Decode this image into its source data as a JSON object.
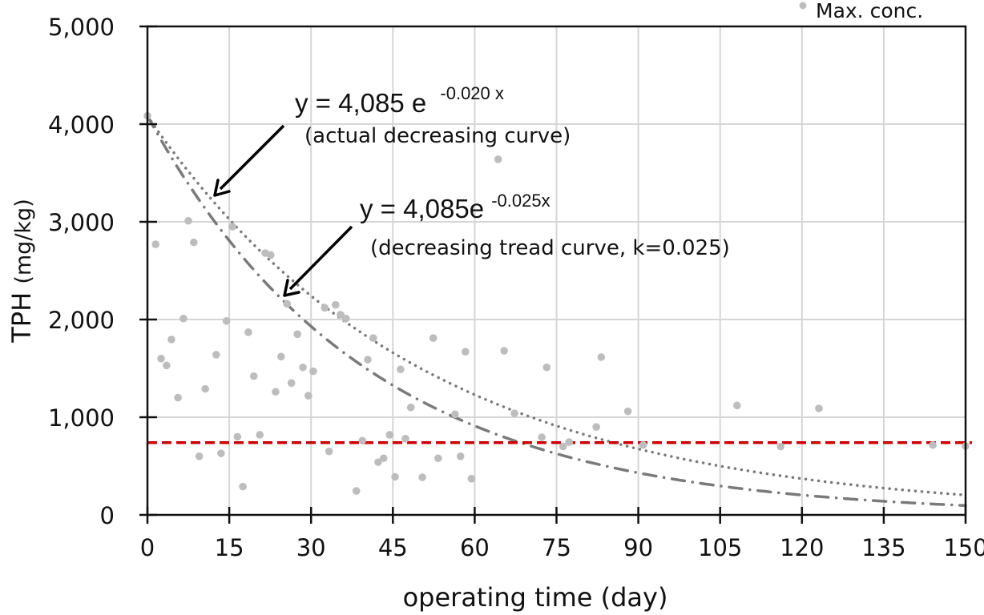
{
  "chart_data": {
    "type": "scatter",
    "title": "",
    "xlabel": "operating time (day)",
    "ylabel_main": "TPH",
    "ylabel_unit": "(mg/kg)",
    "xlim": [
      0,
      150
    ],
    "ylim": [
      0,
      5000
    ],
    "xticks": [
      0,
      15,
      30,
      45,
      60,
      75,
      90,
      105,
      120,
      135,
      150
    ],
    "yticks": [
      0,
      1000,
      2000,
      3000,
      4000,
      5000
    ],
    "xtick_labels": [
      "0",
      "15",
      "30",
      "45",
      "60",
      "75",
      "90",
      "105",
      "120",
      "135",
      "150"
    ],
    "ytick_labels": [
      "0",
      "1,000",
      "2,000",
      "3,000",
      "4,000",
      "5,000"
    ],
    "grid": true,
    "legend": {
      "position": "top-right",
      "entries": [
        {
          "label": "Max. conc.",
          "color": "#bdbdbd",
          "marker": "circle"
        }
      ]
    },
    "series": [
      {
        "name": "Max. conc.",
        "kind": "scatter",
        "color": "#bdbdbd",
        "points": [
          [
            0,
            4085
          ],
          [
            1.5,
            2770
          ],
          [
            2.5,
            1600
          ],
          [
            3.5,
            1530
          ],
          [
            4.4,
            1795
          ],
          [
            5.6,
            1200
          ],
          [
            6.6,
            2010
          ],
          [
            7.5,
            3010
          ],
          [
            8.5,
            2790
          ],
          [
            9.5,
            600
          ],
          [
            10.6,
            1290
          ],
          [
            12.6,
            1640
          ],
          [
            13.5,
            630
          ],
          [
            14.5,
            1985
          ],
          [
            15.6,
            2950
          ],
          [
            16.5,
            800
          ],
          [
            17.5,
            290
          ],
          [
            18.5,
            1870
          ],
          [
            19.5,
            1420
          ],
          [
            20.6,
            820
          ],
          [
            21.6,
            2680
          ],
          [
            22.6,
            2660
          ],
          [
            23.5,
            1260
          ],
          [
            24.5,
            1620
          ],
          [
            25.6,
            2160
          ],
          [
            26.4,
            1350
          ],
          [
            27.5,
            1850
          ],
          [
            28.5,
            1510
          ],
          [
            29.5,
            1220
          ],
          [
            30.4,
            1470
          ],
          [
            32.5,
            2120
          ],
          [
            33.3,
            650
          ],
          [
            34.5,
            2150
          ],
          [
            35.4,
            2050
          ],
          [
            36.4,
            2010
          ],
          [
            38.3,
            245
          ],
          [
            39.4,
            760
          ],
          [
            40.4,
            1590
          ],
          [
            41.4,
            1810
          ],
          [
            42.3,
            540
          ],
          [
            43.3,
            580
          ],
          [
            44.4,
            820
          ],
          [
            45.4,
            390
          ],
          [
            46.4,
            1490
          ],
          [
            47.3,
            780
          ],
          [
            48.3,
            1100
          ],
          [
            50.4,
            385
          ],
          [
            52.4,
            1810
          ],
          [
            53.3,
            580
          ],
          [
            56.4,
            1030
          ],
          [
            57.4,
            600
          ],
          [
            58.3,
            1670
          ],
          [
            59.4,
            370
          ],
          [
            64.3,
            3640
          ],
          [
            65.4,
            1680
          ],
          [
            67.3,
            1040
          ],
          [
            72.3,
            795
          ],
          [
            73.2,
            1510
          ],
          [
            76.2,
            700
          ],
          [
            77.3,
            745
          ],
          [
            82.3,
            900
          ],
          [
            83.2,
            1615
          ],
          [
            88.1,
            1060
          ],
          [
            90.9,
            715
          ],
          [
            108.1,
            1120
          ],
          [
            116.1,
            700
          ],
          [
            123.1,
            1090
          ],
          [
            144.0,
            715
          ],
          [
            150,
            705
          ]
        ]
      },
      {
        "name": "actual decreasing curve",
        "kind": "exponential",
        "a": 4085,
        "k": 0.02,
        "style": "dotted",
        "color": "#7a7a7a"
      },
      {
        "name": "decreasing tread curve",
        "kind": "exponential",
        "a": 4085,
        "k": 0.025,
        "style": "dash-dot",
        "color": "#7a7a7a"
      },
      {
        "name": "reference level",
        "kind": "hline",
        "y": 740,
        "style": "dashed",
        "color": "#cc0000"
      }
    ],
    "annotations": [
      {
        "id": "actual",
        "equation_main": "y = 4,085 e",
        "equation_exp": "-0.020 x",
        "description": "(actual decreasing curve)",
        "arrow_target": [
          12,
          3300
        ]
      },
      {
        "id": "trend",
        "equation_main": "y = 4,085e",
        "equation_exp": "-0.025x",
        "description": "(decreasing tread curve, k=0.025)",
        "arrow_target": [
          25,
          2250
        ]
      }
    ]
  }
}
